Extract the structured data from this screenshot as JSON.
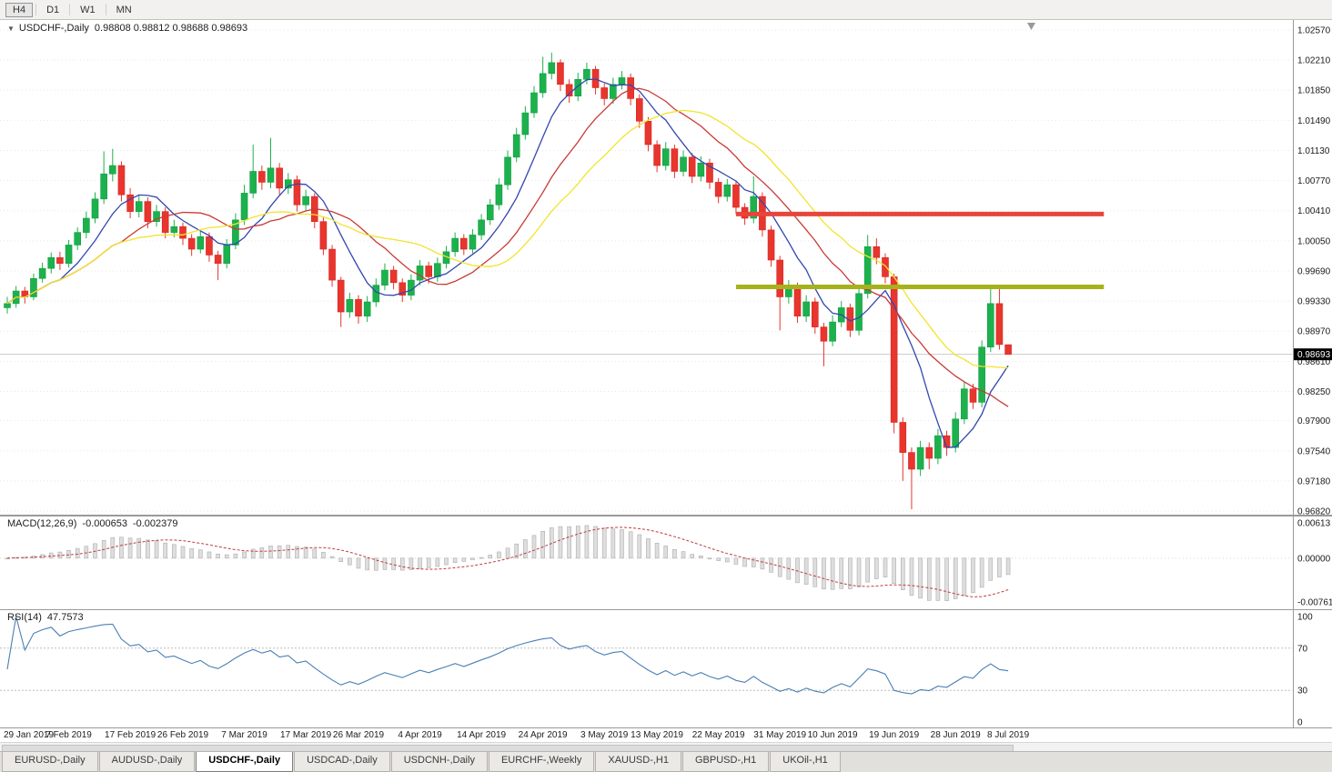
{
  "toolbar": {
    "timeframe_buttons": [
      {
        "label": "H4",
        "active": true
      },
      {
        "label": "D1",
        "active": false
      },
      {
        "label": "W1",
        "active": false
      },
      {
        "label": "MN",
        "active": false
      }
    ]
  },
  "chart": {
    "title": {
      "collapse_icon": "▼",
      "symbol": "USDCHF-,Daily",
      "ohlc": "0.98808 0.98812 0.98688 0.98693"
    },
    "colors": {
      "bull": "#1db14e",
      "bull_border": "#0f9e40",
      "bear": "#e8352e",
      "bear_border": "#d42821",
      "ma_fast": "#3347b0",
      "ma_mid": "#c93a35",
      "ma_slow": "#f3e32c",
      "resistance": "#e8453a",
      "support": "#a6b21c",
      "grid": "#e7e7e7",
      "axis_text": "#1a1a1a",
      "separator": "#9a9a9a",
      "current_price_line": "#c9c9c9",
      "current_price_bg": "#000000",
      "current_price_text": "#ffffff",
      "macd_hist_fill": "#dedede",
      "macd_hist_stroke": "#adadad",
      "macd_signal": "#c23b3b",
      "rsi_line": "#4a7fb5",
      "rsi_level": "#bdbdbd",
      "shift_marker": "#9a9a9a"
    },
    "price_axis": {
      "labels": [
        "1.02570",
        "1.02210",
        "1.01850",
        "1.01490",
        "1.01130",
        "1.00770",
        "1.00410",
        "1.00050",
        "0.99690",
        "0.99330",
        "0.98970",
        "0.98610",
        "0.98250",
        "0.97900",
        "0.97540",
        "0.97180",
        "0.96820"
      ],
      "top_price": 1.0257,
      "bottom_price": 0.9682,
      "current_price": "0.98693"
    },
    "levels": [
      {
        "name": "resistance-line",
        "price": 1.0037,
        "from_index": 83,
        "to_index": 124.9,
        "color_key": "resistance",
        "thickness": 5
      },
      {
        "name": "support-line",
        "price": 0.995,
        "from_index": 83,
        "to_index": 124.9,
        "color_key": "support",
        "thickness": 5
      }
    ]
  },
  "chart_data": {
    "type": "candlestick",
    "symbol": "USDCHF",
    "timeframe": "Daily",
    "last_bar": {
      "open": 0.98808,
      "high": 0.98812,
      "low": 0.98688,
      "close": 0.98693
    },
    "candles": [
      [
        0.9925,
        0.9938,
        0.9918,
        0.993
      ],
      [
        0.993,
        0.9951,
        0.9925,
        0.9945
      ],
      [
        0.9945,
        0.995,
        0.993,
        0.9938
      ],
      [
        0.9938,
        0.9966,
        0.9934,
        0.996
      ],
      [
        0.996,
        0.9979,
        0.9955,
        0.9972
      ],
      [
        0.9972,
        0.9991,
        0.9966,
        0.9985
      ],
      [
        0.9985,
        0.9992,
        0.997,
        0.9978
      ],
      [
        0.9978,
        1.0006,
        0.9973,
        1.0
      ],
      [
        1.0,
        1.0021,
        0.9994,
        1.0015
      ],
      [
        1.0015,
        1.004,
        1.0008,
        1.0032
      ],
      [
        1.0032,
        1.0063,
        1.0026,
        1.0055
      ],
      [
        1.0055,
        1.0112,
        1.0049,
        1.0085
      ],
      [
        1.0085,
        1.0115,
        1.0076,
        1.0095
      ],
      [
        1.0095,
        1.01,
        1.0052,
        1.006
      ],
      [
        1.006,
        1.0068,
        1.0032,
        1.004
      ],
      [
        1.004,
        1.006,
        1.0033,
        1.0052
      ],
      [
        1.0052,
        1.0057,
        1.002,
        1.0028
      ],
      [
        1.0028,
        1.0048,
        1.0022,
        1.004
      ],
      [
        1.004,
        1.0045,
        1.0008,
        1.0015
      ],
      [
        1.0015,
        1.003,
        1.0009,
        1.0022
      ],
      [
        1.0022,
        1.0027,
        1.0,
        1.0008
      ],
      [
        1.0008,
        1.0013,
        0.9987,
        0.9995
      ],
      [
        0.9995,
        1.0017,
        0.999,
        1.001
      ],
      [
        1.001,
        1.0015,
        0.998,
        0.9988
      ],
      [
        0.9988,
        0.9993,
        0.9958,
        0.9978
      ],
      [
        0.9978,
        1.0007,
        0.9972,
        1.0
      ],
      [
        1.0,
        1.0038,
        0.9995,
        1.003
      ],
      [
        1.003,
        1.0072,
        1.0024,
        1.0062
      ],
      [
        1.0062,
        1.012,
        1.0056,
        1.0088
      ],
      [
        1.0088,
        1.0095,
        1.0066,
        1.0075
      ],
      [
        1.0075,
        1.0128,
        1.0068,
        1.0092
      ],
      [
        1.0092,
        1.0098,
        1.006,
        1.0068
      ],
      [
        1.0068,
        1.0086,
        1.0061,
        1.0078
      ],
      [
        1.0078,
        1.0083,
        1.004,
        1.0048
      ],
      [
        1.0048,
        1.0066,
        1.0041,
        1.0058
      ],
      [
        1.0058,
        1.0062,
        1.002,
        1.0028
      ],
      [
        1.0028,
        1.0033,
        0.9988,
        0.9995
      ],
      [
        0.9995,
        1.0,
        0.995,
        0.9958
      ],
      [
        0.9958,
        0.9962,
        0.9902,
        0.992
      ],
      [
        0.992,
        0.9943,
        0.9913,
        0.9935
      ],
      [
        0.9935,
        0.994,
        0.9906,
        0.9915
      ],
      [
        0.9915,
        0.9939,
        0.9908,
        0.9932
      ],
      [
        0.9932,
        0.996,
        0.9926,
        0.9952
      ],
      [
        0.9952,
        0.9978,
        0.9946,
        0.997
      ],
      [
        0.997,
        0.9975,
        0.9947,
        0.9955
      ],
      [
        0.9955,
        0.996,
        0.9932,
        0.994
      ],
      [
        0.994,
        0.9965,
        0.9934,
        0.9958
      ],
      [
        0.9958,
        0.9982,
        0.9952,
        0.9975
      ],
      [
        0.9975,
        0.998,
        0.9954,
        0.9962
      ],
      [
        0.9962,
        0.9985,
        0.9956,
        0.9978
      ],
      [
        0.9978,
        0.9999,
        0.9972,
        0.9992
      ],
      [
        0.9992,
        1.0015,
        0.9986,
        1.0008
      ],
      [
        1.0008,
        1.0013,
        0.9988,
        0.9995
      ],
      [
        0.9995,
        1.0019,
        0.999,
        1.0012
      ],
      [
        1.0012,
        1.0037,
        1.0006,
        1.003
      ],
      [
        1.003,
        1.0055,
        1.0024,
        1.0048
      ],
      [
        1.0048,
        1.008,
        1.0042,
        1.0072
      ],
      [
        1.0072,
        1.0113,
        1.0066,
        1.0105
      ],
      [
        1.0105,
        1.014,
        1.0099,
        1.0132
      ],
      [
        1.0132,
        1.0166,
        1.0126,
        1.0158
      ],
      [
        1.0158,
        1.019,
        1.0152,
        1.0182
      ],
      [
        1.0182,
        1.0225,
        1.0176,
        1.0205
      ],
      [
        1.0205,
        1.023,
        1.0198,
        1.0218
      ],
      [
        1.0218,
        1.0222,
        1.0184,
        1.0192
      ],
      [
        1.0192,
        1.0198,
        1.017,
        1.0178
      ],
      [
        1.0178,
        1.0206,
        1.0172,
        1.0198
      ],
      [
        1.0198,
        1.0218,
        1.0192,
        1.021
      ],
      [
        1.021,
        1.0214,
        1.018,
        1.0188
      ],
      [
        1.0188,
        1.0193,
        1.0167,
        1.0175
      ],
      [
        1.0175,
        1.02,
        1.0169,
        1.0192
      ],
      [
        1.0192,
        1.0208,
        1.0186,
        1.02
      ],
      [
        1.02,
        1.0205,
        1.0167,
        1.0175
      ],
      [
        1.0175,
        1.018,
        1.014,
        1.0148
      ],
      [
        1.0148,
        1.0153,
        1.0112,
        1.012
      ],
      [
        1.012,
        1.0125,
        1.0087,
        1.0095
      ],
      [
        1.0095,
        1.0123,
        1.0089,
        1.0115
      ],
      [
        1.0115,
        1.012,
        1.008,
        1.0088
      ],
      [
        1.0088,
        1.0113,
        1.0082,
        1.0105
      ],
      [
        1.0105,
        1.011,
        1.0074,
        1.0082
      ],
      [
        1.0082,
        1.0106,
        1.0076,
        1.0098
      ],
      [
        1.0098,
        1.0103,
        1.0067,
        1.0075
      ],
      [
        1.0075,
        1.008,
        1.005,
        1.0058
      ],
      [
        1.0058,
        1.0079,
        1.0052,
        1.0072
      ],
      [
        1.0072,
        1.0077,
        1.0037,
        1.0045
      ],
      [
        1.0045,
        1.005,
        1.0024,
        1.0032
      ],
      [
        1.0032,
        1.0082,
        1.0026,
        1.0058
      ],
      [
        1.0058,
        1.0063,
        1.001,
        1.0018
      ],
      [
        1.0018,
        1.0023,
        0.9974,
        0.9982
      ],
      [
        0.9982,
        0.9987,
        0.9898,
        0.9938
      ],
      [
        0.9938,
        0.9958,
        0.993,
        0.995
      ],
      [
        0.995,
        0.9955,
        0.9907,
        0.9915
      ],
      [
        0.9915,
        0.994,
        0.9908,
        0.9932
      ],
      [
        0.9932,
        0.9937,
        0.9894,
        0.9902
      ],
      [
        0.9902,
        0.9907,
        0.9855,
        0.9885
      ],
      [
        0.9885,
        0.9916,
        0.9879,
        0.9908
      ],
      [
        0.9908,
        0.9933,
        0.9902,
        0.9925
      ],
      [
        0.9925,
        0.993,
        0.989,
        0.9898
      ],
      [
        0.9898,
        0.995,
        0.9892,
        0.9942
      ],
      [
        0.9942,
        1.0012,
        0.9936,
        0.9998
      ],
      [
        0.9998,
        1.0008,
        0.9977,
        0.9985
      ],
      [
        0.9985,
        0.999,
        0.9954,
        0.9962
      ],
      [
        0.9962,
        0.9966,
        0.9775,
        0.9788
      ],
      [
        0.9788,
        0.9794,
        0.9718,
        0.9752
      ],
      [
        0.9752,
        0.9758,
        0.9684,
        0.9732
      ],
      [
        0.9732,
        0.9766,
        0.9724,
        0.9758
      ],
      [
        0.9758,
        0.9764,
        0.9732,
        0.9745
      ],
      [
        0.9745,
        0.978,
        0.9738,
        0.9772
      ],
      [
        0.9772,
        0.9778,
        0.9748,
        0.9758
      ],
      [
        0.9758,
        0.98,
        0.9752,
        0.9792
      ],
      [
        0.9792,
        0.9836,
        0.9786,
        0.9828
      ],
      [
        0.9828,
        0.9834,
        0.9804,
        0.9812
      ],
      [
        0.9812,
        0.9886,
        0.9806,
        0.9878
      ],
      [
        0.9878,
        0.9952,
        0.9872,
        0.993
      ],
      [
        0.993,
        0.995,
        0.9875,
        0.9881
      ],
      [
        0.98808,
        0.98812,
        0.98688,
        0.98693
      ]
    ],
    "date_labels": [
      {
        "label": "29 Jan 2019",
        "index": 0
      },
      {
        "label": "7 Feb 2019",
        "index": 7
      },
      {
        "label": "17 Feb 2019",
        "index": 14
      },
      {
        "label": "26 Feb 2019",
        "index": 20
      },
      {
        "label": "7 Mar 2019",
        "index": 27
      },
      {
        "label": "17 Mar 2019",
        "index": 34
      },
      {
        "label": "26 Mar 2019",
        "index": 40
      },
      {
        "label": "4 Apr 2019",
        "index": 47
      },
      {
        "label": "14 Apr 2019",
        "index": 54
      },
      {
        "label": "24 Apr 2019",
        "index": 61
      },
      {
        "label": "3 May 2019",
        "index": 68
      },
      {
        "label": "13 May 2019",
        "index": 74
      },
      {
        "label": "22 May 2019",
        "index": 81
      },
      {
        "label": "31 May 2019",
        "index": 88
      },
      {
        "label": "10 Jun 2019",
        "index": 94
      },
      {
        "label": "19 Jun 2019",
        "index": 101
      },
      {
        "label": "28 Jun 2019",
        "index": 108
      },
      {
        "label": "8 Jul 2019",
        "index": 114
      }
    ],
    "indicators": {
      "moving_averages": [
        {
          "period": 7,
          "color_key": "ma_fast"
        },
        {
          "period": 14,
          "color_key": "ma_mid"
        },
        {
          "period": 21,
          "color_key": "ma_slow"
        }
      ],
      "macd": {
        "label": "MACD(12,26,9)",
        "value_main": "-0.000653",
        "value_signal": "-0.002379",
        "fast": 12,
        "slow": 26,
        "signal": 9,
        "axis_max": 0.00613,
        "axis_min": -0.00761,
        "axis_labels": [
          "0.00613",
          "0.00000",
          "-0.00761"
        ]
      },
      "rsi": {
        "label": "RSI(14)",
        "value": "47.7573",
        "period": 14,
        "levels": [
          70,
          30
        ],
        "axis_labels": [
          "100",
          "70",
          "30",
          "0"
        ]
      }
    }
  },
  "bottom_tabs": {
    "items": [
      {
        "label": "EURUSD-,Daily",
        "active": false
      },
      {
        "label": "AUDUSD-,Daily",
        "active": false
      },
      {
        "label": "USDCHF-,Daily",
        "active": true
      },
      {
        "label": "USDCAD-,Daily",
        "active": false
      },
      {
        "label": "USDCNH-,Daily",
        "active": false
      },
      {
        "label": "EURCHF-,Weekly",
        "active": false
      },
      {
        "label": "XAUUSD-,H1",
        "active": false
      },
      {
        "label": "GBPUSD-,H1",
        "active": false
      },
      {
        "label": "UKOil-,H1",
        "active": false
      }
    ]
  }
}
